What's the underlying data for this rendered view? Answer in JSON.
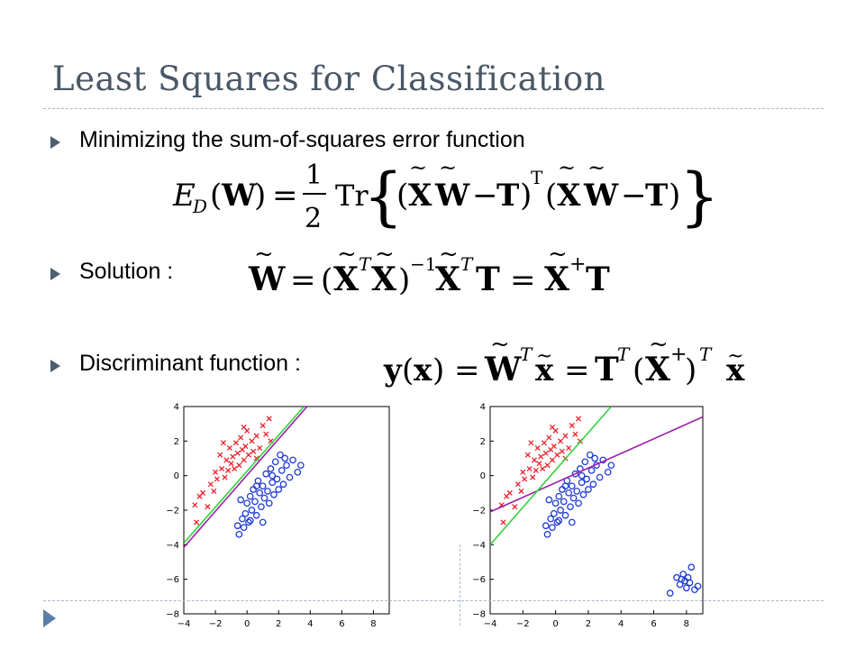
{
  "slide": {
    "title": "Least Squares for Classification",
    "bullets": [
      {
        "text": "Minimizing the sum-of-squares error function"
      },
      {
        "text": "Solution :"
      },
      {
        "text": "Discriminant function :"
      }
    ]
  },
  "colors": {
    "title": "#4a5766",
    "bullet": "#4e5e70",
    "rule": "#a9b7c5",
    "class_red": "#e8232a",
    "class_blue": "#1f3bd6",
    "least_squares_line": "#9b1fa8",
    "logistic_line": "#33d13d"
  },
  "chart_data": [
    {
      "type": "scatter",
      "title": "",
      "xlim": [
        -4,
        9
      ],
      "ylim": [
        -8,
        4
      ],
      "xticks": [
        "−4",
        "−2",
        "0",
        "2",
        "4",
        "6",
        "8"
      ],
      "yticks": [
        "−8",
        "−6",
        "−4",
        "−2",
        "0",
        "2",
        "4"
      ],
      "grid": false,
      "series": [
        {
          "marker": "x",
          "color": "#e8232a",
          "points": [
            [
              -3.3,
              -1.7
            ],
            [
              -3.2,
              -2.7
            ],
            [
              -3.0,
              -1.2
            ],
            [
              -2.8,
              -1.0
            ],
            [
              -2.5,
              -1.8
            ],
            [
              -2.3,
              -0.5
            ],
            [
              -2.1,
              -0.9
            ],
            [
              -2.0,
              0.2
            ],
            [
              -1.9,
              -0.2
            ],
            [
              -1.7,
              1.2
            ],
            [
              -1.6,
              0.4
            ],
            [
              -1.4,
              -0.1
            ],
            [
              -1.3,
              0.9
            ],
            [
              -1.2,
              0.3
            ],
            [
              -1.1,
              1.6
            ],
            [
              -1.0,
              0.7
            ],
            [
              -0.9,
              1.1
            ],
            [
              -0.8,
              0.4
            ],
            [
              -0.7,
              1.9
            ],
            [
              -0.6,
              1.3
            ],
            [
              -0.5,
              0.6
            ],
            [
              -0.4,
              2.2
            ],
            [
              -0.3,
              1.5
            ],
            [
              -0.2,
              0.9
            ],
            [
              -0.1,
              1.7
            ],
            [
              0.0,
              2.6
            ],
            [
              0.1,
              1.2
            ],
            [
              0.3,
              2.0
            ],
            [
              0.4,
              1.4
            ],
            [
              0.6,
              2.3
            ],
            [
              0.8,
              1.6
            ],
            [
              1.0,
              2.9
            ],
            [
              1.2,
              2.4
            ],
            [
              1.4,
              3.3
            ],
            [
              1.5,
              2.0
            ],
            [
              -1.5,
              1.9
            ],
            [
              -0.2,
              2.8
            ],
            [
              0.6,
              1.0
            ]
          ]
        },
        {
          "marker": "o",
          "color": "#1f3bd6",
          "points": [
            [
              -0.6,
              -2.9
            ],
            [
              -0.5,
              -3.4
            ],
            [
              -0.3,
              -2.5
            ],
            [
              -0.2,
              -3.0
            ],
            [
              -0.1,
              -2.2
            ],
            [
              0.0,
              -1.6
            ],
            [
              0.1,
              -2.7
            ],
            [
              0.2,
              -1.2
            ],
            [
              0.3,
              -2.0
            ],
            [
              0.4,
              -0.8
            ],
            [
              0.5,
              -1.5
            ],
            [
              0.6,
              -2.3
            ],
            [
              0.7,
              -0.3
            ],
            [
              0.8,
              -1.0
            ],
            [
              0.9,
              -1.8
            ],
            [
              1.0,
              -0.6
            ],
            [
              1.1,
              -1.3
            ],
            [
              1.2,
              0.1
            ],
            [
              1.3,
              -0.9
            ],
            [
              1.4,
              -1.6
            ],
            [
              1.5,
              0.4
            ],
            [
              1.6,
              -0.4
            ],
            [
              1.7,
              -1.1
            ],
            [
              1.8,
              0.8
            ],
            [
              1.9,
              -0.2
            ],
            [
              2.0,
              -0.8
            ],
            [
              2.1,
              1.2
            ],
            [
              2.2,
              0.3
            ],
            [
              2.3,
              -0.5
            ],
            [
              2.5,
              0.6
            ],
            [
              2.7,
              -0.1
            ],
            [
              2.9,
              0.9
            ],
            [
              3.2,
              0.2
            ],
            [
              3.4,
              0.6
            ],
            [
              0.2,
              -2.6
            ],
            [
              -0.4,
              -1.4
            ],
            [
              1.0,
              -2.7
            ],
            [
              1.6,
              0.0
            ],
            [
              0.6,
              -0.6
            ],
            [
              2.4,
              1.0
            ]
          ]
        },
        {
          "marker": "line",
          "color": "#9b1fa8",
          "points": [
            [
              -4,
              -4.15
            ],
            [
              3.8,
              4.0
            ]
          ]
        },
        {
          "marker": "line",
          "color": "#33d13d",
          "points": [
            [
              -4,
              -3.9
            ],
            [
              3.6,
              4.0
            ]
          ]
        }
      ]
    },
    {
      "type": "scatter",
      "title": "",
      "xlim": [
        -4,
        9
      ],
      "ylim": [
        -8,
        4
      ],
      "xticks": [
        "−4",
        "−2",
        "0",
        "2",
        "4",
        "6",
        "8"
      ],
      "yticks": [
        "−8",
        "−6",
        "−4",
        "−2",
        "0",
        "2",
        "4"
      ],
      "grid": false,
      "series": [
        {
          "marker": "x",
          "color": "#e8232a",
          "points": [
            [
              -3.3,
              -1.7
            ],
            [
              -3.2,
              -2.7
            ],
            [
              -3.0,
              -1.2
            ],
            [
              -2.8,
              -1.0
            ],
            [
              -2.5,
              -1.8
            ],
            [
              -2.3,
              -0.5
            ],
            [
              -2.1,
              -0.9
            ],
            [
              -2.0,
              0.2
            ],
            [
              -1.9,
              -0.2
            ],
            [
              -1.7,
              1.2
            ],
            [
              -1.6,
              0.4
            ],
            [
              -1.4,
              -0.1
            ],
            [
              -1.3,
              0.9
            ],
            [
              -1.2,
              0.3
            ],
            [
              -1.1,
              1.6
            ],
            [
              -1.0,
              0.7
            ],
            [
              -0.9,
              1.1
            ],
            [
              -0.8,
              0.4
            ],
            [
              -0.7,
              1.9
            ],
            [
              -0.6,
              1.3
            ],
            [
              -0.5,
              0.6
            ],
            [
              -0.4,
              2.2
            ],
            [
              -0.3,
              1.5
            ],
            [
              -0.2,
              0.9
            ],
            [
              -0.1,
              1.7
            ],
            [
              0.0,
              2.6
            ],
            [
              0.1,
              1.2
            ],
            [
              0.3,
              2.0
            ],
            [
              0.4,
              1.4
            ],
            [
              0.6,
              2.3
            ],
            [
              0.8,
              1.6
            ],
            [
              1.0,
              2.9
            ],
            [
              1.2,
              2.4
            ],
            [
              1.4,
              3.3
            ],
            [
              1.5,
              2.0
            ],
            [
              -1.5,
              1.9
            ],
            [
              -0.2,
              2.8
            ],
            [
              0.6,
              1.0
            ]
          ]
        },
        {
          "marker": "o",
          "color": "#1f3bd6",
          "points": [
            [
              -0.6,
              -2.9
            ],
            [
              -0.5,
              -3.4
            ],
            [
              -0.3,
              -2.5
            ],
            [
              -0.2,
              -3.0
            ],
            [
              -0.1,
              -2.2
            ],
            [
              0.0,
              -1.6
            ],
            [
              0.1,
              -2.7
            ],
            [
              0.2,
              -1.2
            ],
            [
              0.3,
              -2.0
            ],
            [
              0.4,
              -0.8
            ],
            [
              0.5,
              -1.5
            ],
            [
              0.6,
              -2.3
            ],
            [
              0.7,
              -0.3
            ],
            [
              0.8,
              -1.0
            ],
            [
              0.9,
              -1.8
            ],
            [
              1.0,
              -0.6
            ],
            [
              1.1,
              -1.3
            ],
            [
              1.2,
              0.1
            ],
            [
              1.3,
              -0.9
            ],
            [
              1.4,
              -1.6
            ],
            [
              1.5,
              0.4
            ],
            [
              1.6,
              -0.4
            ],
            [
              1.7,
              -1.1
            ],
            [
              1.8,
              0.8
            ],
            [
              1.9,
              -0.2
            ],
            [
              2.0,
              -0.8
            ],
            [
              2.1,
              1.2
            ],
            [
              2.2,
              0.3
            ],
            [
              2.3,
              -0.5
            ],
            [
              2.5,
              0.6
            ],
            [
              2.7,
              -0.1
            ],
            [
              2.9,
              0.9
            ],
            [
              3.2,
              0.2
            ],
            [
              3.4,
              0.6
            ],
            [
              0.2,
              -2.6
            ],
            [
              -0.4,
              -1.4
            ],
            [
              1.0,
              -2.7
            ],
            [
              1.6,
              0.0
            ],
            [
              0.6,
              -0.6
            ],
            [
              2.4,
              1.0
            ],
            [
              7.0,
              -6.8
            ],
            [
              7.4,
              -5.9
            ],
            [
              7.6,
              -6.3
            ],
            [
              7.8,
              -5.7
            ],
            [
              7.9,
              -6.1
            ],
            [
              8.0,
              -6.5
            ],
            [
              8.1,
              -5.9
            ],
            [
              8.2,
              -6.2
            ],
            [
              8.3,
              -5.3
            ],
            [
              8.5,
              -6.6
            ],
            [
              8.7,
              -6.4
            ],
            [
              7.7,
              -6.0
            ]
          ]
        },
        {
          "marker": "line",
          "color": "#9b1fa8",
          "points": [
            [
              -4,
              -2.1
            ],
            [
              9,
              3.4
            ]
          ]
        },
        {
          "marker": "line",
          "color": "#33d13d",
          "points": [
            [
              -4,
              -4.0
            ],
            [
              3.4,
              4.0
            ]
          ]
        }
      ]
    }
  ]
}
